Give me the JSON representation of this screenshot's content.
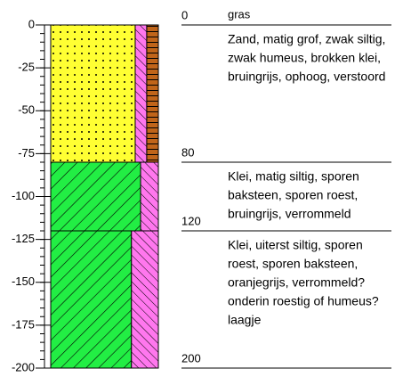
{
  "axis": {
    "lim": [
      -200,
      0
    ],
    "ticks": [
      0,
      -25,
      -50,
      -75,
      -100,
      -125,
      -150,
      -175,
      -200
    ],
    "minor_step": 5
  },
  "note": "gras",
  "depth_labels": [
    0,
    80,
    120,
    200
  ],
  "layers": [
    {
      "top": 0,
      "bottom": 80,
      "lines": [
        "Zand, matig grof, zwak siltig,",
        "zwak humeus, brokken klei,",
        "bruingrijs, ophoog, verstoord"
      ]
    },
    {
      "top": 80,
      "bottom": 120,
      "lines": [
        "Klei, matig siltig, sporen",
        "baksteen, sporen roest,",
        "bruingrijs, verrommeld"
      ]
    },
    {
      "top": 120,
      "bottom": 200,
      "lines": [
        "Klei, uiterst siltig, sporen",
        "roest, sporen baksteen,",
        "oranjegrijs, verrommeld?",
        "onderin roestig of humeus?",
        "laagje"
      ]
    }
  ]
}
